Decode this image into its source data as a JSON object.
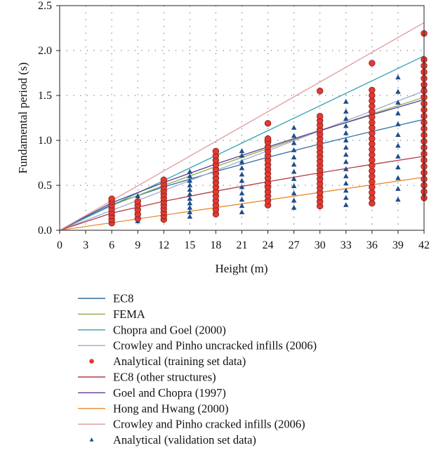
{
  "chart_data": {
    "type": "scatter",
    "title": "",
    "xlabel": "Height (m)",
    "ylabel": "Fundamental period (s)",
    "xlim": [
      0,
      42
    ],
    "ylim": [
      0,
      2.5
    ],
    "xticks": [
      0,
      3,
      6,
      9,
      12,
      15,
      18,
      21,
      24,
      27,
      30,
      33,
      36,
      39,
      42
    ],
    "yticks": [
      0.0,
      0.5,
      1.0,
      1.5,
      2.0,
      2.5
    ],
    "ytick_labels": [
      "0.0",
      "0.5",
      "1.0",
      "1.5",
      "2.0",
      "2.5"
    ],
    "grid": "dotted",
    "legend_position": "below",
    "series": [
      {
        "name": "EC8",
        "kind": "line",
        "color": "#2e6fa3",
        "x": [
          0,
          6,
          12,
          18,
          24,
          30,
          36,
          42
        ],
        "y": [
          0,
          0.287,
          0.483,
          0.654,
          0.812,
          0.96,
          1.1,
          1.234
        ]
      },
      {
        "name": "FEMA",
        "kind": "line",
        "color": "#8cad4a",
        "x": [
          0,
          6,
          12,
          18,
          24,
          30,
          36,
          42
        ],
        "y": [
          0,
          0.276,
          0.499,
          0.709,
          0.91,
          1.105,
          1.295,
          1.48
        ]
      },
      {
        "name": "Chopra and Goel (2000)",
        "kind": "line",
        "color": "#35a3b5",
        "x": [
          0,
          42
        ],
        "y": [
          0,
          1.94
        ]
      },
      {
        "name": "Crowley and Pinho uncracked infills (2006)",
        "kind": "line",
        "color": "#9ea7d8",
        "x": [
          0,
          42
        ],
        "y": [
          0,
          1.55
        ]
      },
      {
        "name": "Analytical (training set data)",
        "kind": "scatter",
        "marker": "circle",
        "color": "#e03a32",
        "points": [
          [
            6,
            0.08
          ],
          [
            6,
            0.12
          ],
          [
            6,
            0.16
          ],
          [
            6,
            0.2
          ],
          [
            6,
            0.24
          ],
          [
            6,
            0.28
          ],
          [
            6,
            0.32
          ],
          [
            6,
            0.35
          ],
          [
            9,
            0.13
          ],
          [
            9,
            0.18
          ],
          [
            9,
            0.23
          ],
          [
            9,
            0.28
          ],
          [
            9,
            0.32
          ],
          [
            12,
            0.12
          ],
          [
            12,
            0.16
          ],
          [
            12,
            0.2
          ],
          [
            12,
            0.24
          ],
          [
            12,
            0.28
          ],
          [
            12,
            0.32
          ],
          [
            12,
            0.36
          ],
          [
            12,
            0.4
          ],
          [
            12,
            0.44
          ],
          [
            12,
            0.48
          ],
          [
            12,
            0.52
          ],
          [
            12,
            0.56
          ],
          [
            18,
            0.18
          ],
          [
            18,
            0.23
          ],
          [
            18,
            0.28
          ],
          [
            18,
            0.33
          ],
          [
            18,
            0.38
          ],
          [
            18,
            0.43
          ],
          [
            18,
            0.48
          ],
          [
            18,
            0.53
          ],
          [
            18,
            0.58
          ],
          [
            18,
            0.63
          ],
          [
            18,
            0.68
          ],
          [
            18,
            0.73
          ],
          [
            18,
            0.78
          ],
          [
            18,
            0.83
          ],
          [
            18,
            0.88
          ],
          [
            24,
            0.28
          ],
          [
            24,
            0.33
          ],
          [
            24,
            0.38
          ],
          [
            24,
            0.43
          ],
          [
            24,
            0.48
          ],
          [
            24,
            0.53
          ],
          [
            24,
            0.58
          ],
          [
            24,
            0.63
          ],
          [
            24,
            0.68
          ],
          [
            24,
            0.73
          ],
          [
            24,
            0.78
          ],
          [
            24,
            0.83
          ],
          [
            24,
            0.88
          ],
          [
            24,
            0.93
          ],
          [
            24,
            0.98
          ],
          [
            24,
            1.02
          ],
          [
            24,
            1.19
          ],
          [
            30,
            0.27
          ],
          [
            30,
            0.32
          ],
          [
            30,
            0.37
          ],
          [
            30,
            0.42
          ],
          [
            30,
            0.47
          ],
          [
            30,
            0.52
          ],
          [
            30,
            0.57
          ],
          [
            30,
            0.62
          ],
          [
            30,
            0.67
          ],
          [
            30,
            0.72
          ],
          [
            30,
            0.77
          ],
          [
            30,
            0.82
          ],
          [
            30,
            0.87
          ],
          [
            30,
            0.92
          ],
          [
            30,
            0.97
          ],
          [
            30,
            1.02
          ],
          [
            30,
            1.07
          ],
          [
            30,
            1.12
          ],
          [
            30,
            1.17
          ],
          [
            30,
            1.22
          ],
          [
            30,
            1.27
          ],
          [
            30,
            1.55
          ],
          [
            36,
            0.3
          ],
          [
            36,
            0.36
          ],
          [
            36,
            0.42
          ],
          [
            36,
            0.48
          ],
          [
            36,
            0.54
          ],
          [
            36,
            0.6
          ],
          [
            36,
            0.66
          ],
          [
            36,
            0.72
          ],
          [
            36,
            0.78
          ],
          [
            36,
            0.84
          ],
          [
            36,
            0.9
          ],
          [
            36,
            0.96
          ],
          [
            36,
            1.02
          ],
          [
            36,
            1.08
          ],
          [
            36,
            1.14
          ],
          [
            36,
            1.2
          ],
          [
            36,
            1.26
          ],
          [
            36,
            1.32
          ],
          [
            36,
            1.38
          ],
          [
            36,
            1.44
          ],
          [
            36,
            1.5
          ],
          [
            36,
            1.56
          ],
          [
            36,
            1.86
          ],
          [
            42,
            0.36
          ],
          [
            42,
            0.43
          ],
          [
            42,
            0.5
          ],
          [
            42,
            0.57
          ],
          [
            42,
            0.64
          ],
          [
            42,
            0.71
          ],
          [
            42,
            0.78
          ],
          [
            42,
            0.85
          ],
          [
            42,
            0.92
          ],
          [
            42,
            0.99
          ],
          [
            42,
            1.06
          ],
          [
            42,
            1.13
          ],
          [
            42,
            1.2
          ],
          [
            42,
            1.27
          ],
          [
            42,
            1.34
          ],
          [
            42,
            1.41
          ],
          [
            42,
            1.48
          ],
          [
            42,
            1.55
          ],
          [
            42,
            1.62
          ],
          [
            42,
            1.69
          ],
          [
            42,
            1.76
          ],
          [
            42,
            1.83
          ],
          [
            42,
            1.9
          ],
          [
            42,
            2.19
          ]
        ]
      },
      {
        "name": "EC8 (other structures)",
        "kind": "line",
        "color": "#b23a46",
        "x": [
          0,
          6,
          12,
          18,
          24,
          30,
          36,
          42
        ],
        "y": [
          0,
          0.191,
          0.322,
          0.436,
          0.541,
          0.64,
          0.733,
          0.823
        ]
      },
      {
        "name": "Goel and Chopra (1997)",
        "kind": "line",
        "color": "#5a3d92",
        "x": [
          0,
          6,
          12,
          18,
          24,
          30,
          36,
          42
        ],
        "y": [
          0,
          0.306,
          0.532,
          0.737,
          0.928,
          1.11,
          1.285,
          1.454
        ]
      },
      {
        "name": "Hong and Hwang (2000)",
        "kind": "line",
        "color": "#ea8a2c",
        "x": [
          0,
          42
        ],
        "y": [
          0,
          0.59
        ]
      },
      {
        "name": "Crowley and Pinho cracked infills (2006)",
        "kind": "line",
        "color": "#df9a9e",
        "x": [
          0,
          42
        ],
        "y": [
          0,
          2.31
        ]
      },
      {
        "name": "Analytical (validation set data)",
        "kind": "scatter",
        "marker": "triangle",
        "color": "#1f4e8a",
        "points": [
          [
            6,
            0.09
          ],
          [
            6,
            0.13
          ],
          [
            6,
            0.17
          ],
          [
            6,
            0.21
          ],
          [
            6,
            0.25
          ],
          [
            6,
            0.29
          ],
          [
            6,
            0.33
          ],
          [
            9,
            0.1
          ],
          [
            9,
            0.14
          ],
          [
            9,
            0.18
          ],
          [
            9,
            0.22
          ],
          [
            9,
            0.26
          ],
          [
            9,
            0.3
          ],
          [
            9,
            0.34
          ],
          [
            9,
            0.38
          ],
          [
            12,
            0.14
          ],
          [
            12,
            0.22
          ],
          [
            12,
            0.3
          ],
          [
            12,
            0.38
          ],
          [
            12,
            0.46
          ],
          [
            12,
            0.54
          ],
          [
            15,
            0.15
          ],
          [
            15,
            0.2
          ],
          [
            15,
            0.25
          ],
          [
            15,
            0.3
          ],
          [
            15,
            0.35
          ],
          [
            15,
            0.4
          ],
          [
            15,
            0.45
          ],
          [
            15,
            0.5
          ],
          [
            15,
            0.55
          ],
          [
            15,
            0.6
          ],
          [
            15,
            0.65
          ],
          [
            18,
            0.2
          ],
          [
            18,
            0.3
          ],
          [
            18,
            0.4
          ],
          [
            18,
            0.5
          ],
          [
            18,
            0.6
          ],
          [
            18,
            0.7
          ],
          [
            18,
            0.8
          ],
          [
            21,
            0.2
          ],
          [
            21,
            0.27
          ],
          [
            21,
            0.34
          ],
          [
            21,
            0.41
          ],
          [
            21,
            0.48
          ],
          [
            21,
            0.55
          ],
          [
            21,
            0.62
          ],
          [
            21,
            0.69
          ],
          [
            21,
            0.76
          ],
          [
            21,
            0.83
          ],
          [
            21,
            0.88
          ],
          [
            24,
            0.3
          ],
          [
            24,
            0.4
          ],
          [
            24,
            0.5
          ],
          [
            24,
            0.6
          ],
          [
            24,
            0.7
          ],
          [
            24,
            0.8
          ],
          [
            24,
            0.9
          ],
          [
            24,
            1.0
          ],
          [
            27,
            0.25
          ],
          [
            27,
            0.33
          ],
          [
            27,
            0.41
          ],
          [
            27,
            0.49
          ],
          [
            27,
            0.57
          ],
          [
            27,
            0.65
          ],
          [
            27,
            0.73
          ],
          [
            27,
            0.81
          ],
          [
            27,
            0.89
          ],
          [
            27,
            0.97
          ],
          [
            27,
            1.05
          ],
          [
            27,
            1.14
          ],
          [
            30,
            0.3
          ],
          [
            30,
            0.5
          ],
          [
            30,
            0.7
          ],
          [
            30,
            0.9
          ],
          [
            30,
            1.1
          ],
          [
            33,
            0.28
          ],
          [
            33,
            0.36
          ],
          [
            33,
            0.44
          ],
          [
            33,
            0.52
          ],
          [
            33,
            0.6
          ],
          [
            33,
            0.68
          ],
          [
            33,
            0.76
          ],
          [
            33,
            0.84
          ],
          [
            33,
            0.92
          ],
          [
            33,
            1.0
          ],
          [
            33,
            1.08
          ],
          [
            33,
            1.16
          ],
          [
            33,
            1.24
          ],
          [
            33,
            1.32
          ],
          [
            33,
            1.43
          ],
          [
            36,
            0.4
          ],
          [
            36,
            0.6
          ],
          [
            36,
            0.8
          ],
          [
            36,
            1.0
          ],
          [
            36,
            1.2
          ],
          [
            36,
            1.4
          ],
          [
            39,
            0.34
          ],
          [
            39,
            0.46
          ],
          [
            39,
            0.58
          ],
          [
            39,
            0.7
          ],
          [
            39,
            0.82
          ],
          [
            39,
            0.94
          ],
          [
            39,
            1.06
          ],
          [
            39,
            1.18
          ],
          [
            39,
            1.3
          ],
          [
            39,
            1.42
          ],
          [
            39,
            1.54
          ],
          [
            39,
            1.7
          ],
          [
            42,
            0.4
          ],
          [
            42,
            0.6
          ],
          [
            42,
            0.8
          ],
          [
            42,
            1.0
          ],
          [
            42,
            1.2
          ],
          [
            42,
            1.4
          ],
          [
            42,
            1.6
          ]
        ]
      }
    ]
  }
}
